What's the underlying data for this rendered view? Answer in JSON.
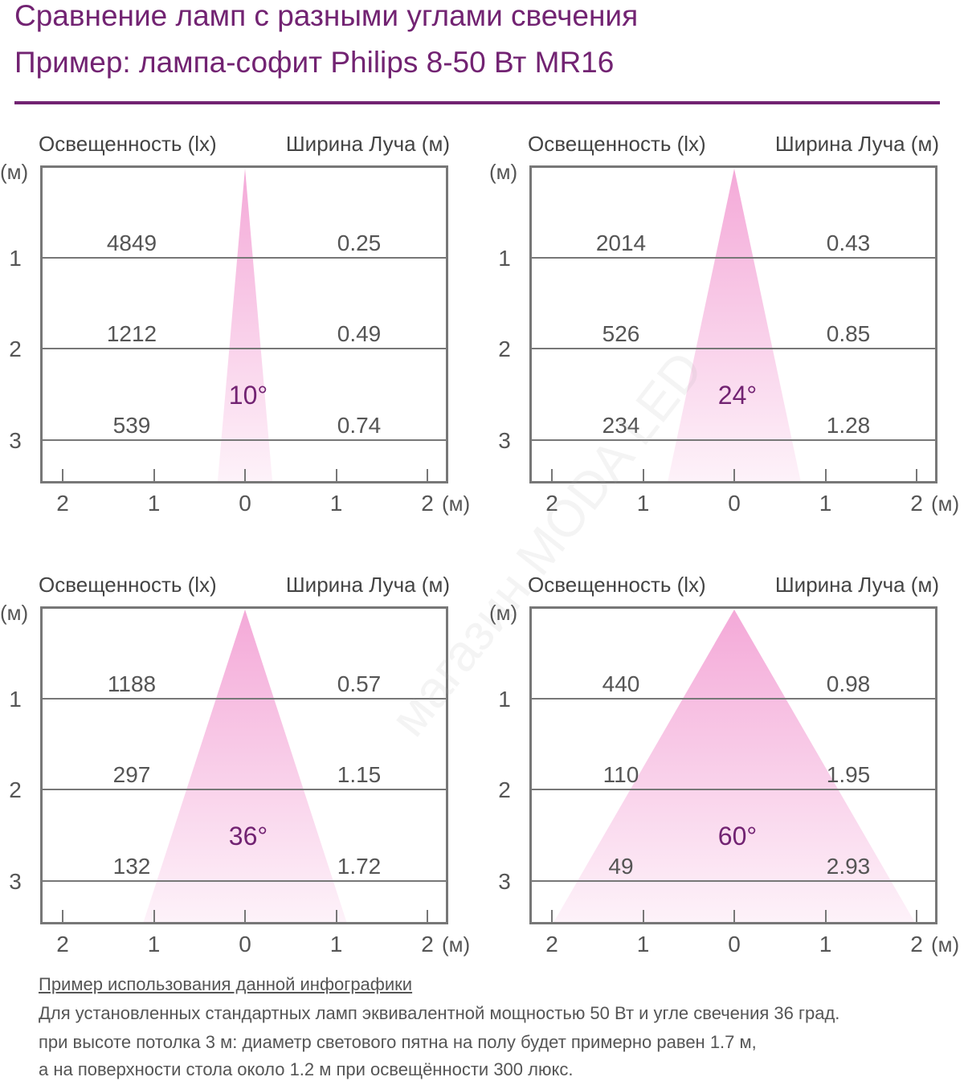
{
  "title": {
    "line1": "Сравнение ламп с разными углами свечения",
    "line2": "Пример: лампа-софит Philips 8-50 Вт MR16"
  },
  "watermark": "магазин MODA LED",
  "chart_data": {
    "type": "beam-diagram",
    "header_left": "Освещенность (lx)",
    "header_right": "Ширина Луча (м)",
    "y_unit": "(м)",
    "x_unit": "(м)",
    "y_ticks": [
      "1",
      "2",
      "3"
    ],
    "x_ticks": [
      "2",
      "1",
      "0",
      "1",
      "2"
    ],
    "panels": [
      {
        "angle": "10°",
        "angle_deg": 10,
        "rows": [
          {
            "distance": 1,
            "lux": "4849",
            "width": "0.25"
          },
          {
            "distance": 2,
            "lux": "1212",
            "width": "0.49"
          },
          {
            "distance": 3,
            "lux": "539",
            "width": "0.74"
          }
        ]
      },
      {
        "angle": "24°",
        "angle_deg": 24,
        "rows": [
          {
            "distance": 1,
            "lux": "2014",
            "width": "0.43"
          },
          {
            "distance": 2,
            "lux": "526",
            "width": "0.85"
          },
          {
            "distance": 3,
            "lux": "234",
            "width": "1.28"
          }
        ]
      },
      {
        "angle": "36°",
        "angle_deg": 36,
        "rows": [
          {
            "distance": 1,
            "lux": "1188",
            "width": "0.57"
          },
          {
            "distance": 2,
            "lux": "297",
            "width": "1.15"
          },
          {
            "distance": 3,
            "lux": "132",
            "width": "1.72"
          }
        ]
      },
      {
        "angle": "60°",
        "angle_deg": 60,
        "rows": [
          {
            "distance": 1,
            "lux": "440",
            "width": "0.98"
          },
          {
            "distance": 2,
            "lux": "110",
            "width": "1.95"
          },
          {
            "distance": 3,
            "lux": "49",
            "width": "2.93"
          }
        ]
      }
    ]
  },
  "colors": {
    "accent": "#722372",
    "beam": "#f4a9d8",
    "grid": "#777777"
  },
  "note": {
    "heading": "Пример использования данной инфографики",
    "line1": "Для установленных стандартных ламп эквивалентной мощностью 50 Вт и угле свечения 36 град.",
    "line2": "при высоте потолка 3 м: диаметр светового пятна на полу будет примерно равен 1.7 м,",
    "line3": "а на поверхности стола около 1.2 м при освещённости 300 люкс."
  }
}
